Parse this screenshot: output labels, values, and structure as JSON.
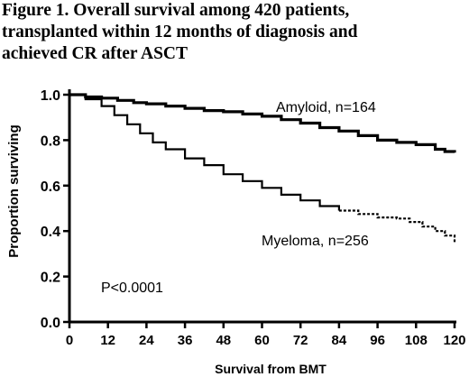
{
  "figure": {
    "title_lines": [
      "Figure 1. Overall survival among 420 patients,",
      "transplanted within  12 months of diagnosis  and",
      "achieved CR after ASCT"
    ]
  },
  "chart_data": {
    "type": "line",
    "title": "Figure 1. Overall survival among 420 patients, transplanted within 12 months of diagnosis and achieved CR after ASCT",
    "xlabel": "Survival from BMT",
    "ylabel": "Proportion surviving",
    "xlim": [
      0,
      120
    ],
    "ylim": [
      0,
      1.0
    ],
    "x_ticks": [
      "0",
      "12",
      "24",
      "36",
      "48",
      "60",
      "72",
      "84",
      "96",
      "108",
      "120"
    ],
    "y_ticks": [
      "0.0",
      "0.2",
      "0.4",
      "0.6",
      "0.8",
      "1.0"
    ],
    "grid": false,
    "annotation": "P<0.0001",
    "series": [
      {
        "name": "Amyloid, n=164",
        "color": "#000000",
        "style": "solid",
        "points": [
          [
            0,
            1.0
          ],
          [
            5,
            0.99
          ],
          [
            10,
            0.985
          ],
          [
            15,
            0.975
          ],
          [
            20,
            0.965
          ],
          [
            24,
            0.96
          ],
          [
            30,
            0.95
          ],
          [
            36,
            0.94
          ],
          [
            42,
            0.93
          ],
          [
            48,
            0.925
          ],
          [
            54,
            0.915
          ],
          [
            60,
            0.905
          ],
          [
            66,
            0.89
          ],
          [
            72,
            0.875
          ],
          [
            78,
            0.855
          ],
          [
            84,
            0.84
          ],
          [
            90,
            0.82
          ],
          [
            96,
            0.8
          ],
          [
            102,
            0.79
          ],
          [
            108,
            0.78
          ],
          [
            114,
            0.76
          ],
          [
            117,
            0.75
          ],
          [
            120,
            0.745
          ]
        ]
      },
      {
        "name": "Myeloma, n=256",
        "color": "#000000",
        "style": "solid-then-dotted",
        "points": [
          [
            0,
            1.0
          ],
          [
            5,
            0.98
          ],
          [
            10,
            0.95
          ],
          [
            14,
            0.91
          ],
          [
            18,
            0.87
          ],
          [
            22,
            0.83
          ],
          [
            26,
            0.79
          ],
          [
            30,
            0.76
          ],
          [
            36,
            0.72
          ],
          [
            42,
            0.69
          ],
          [
            48,
            0.65
          ],
          [
            54,
            0.62
          ],
          [
            60,
            0.59
          ],
          [
            66,
            0.56
          ],
          [
            72,
            0.535
          ],
          [
            78,
            0.51
          ],
          [
            84,
            0.49
          ],
          [
            90,
            0.475
          ],
          [
            96,
            0.46
          ],
          [
            102,
            0.455
          ],
          [
            106,
            0.44
          ],
          [
            110,
            0.42
          ],
          [
            114,
            0.4
          ],
          [
            117,
            0.38
          ],
          [
            120,
            0.35
          ]
        ]
      }
    ]
  }
}
